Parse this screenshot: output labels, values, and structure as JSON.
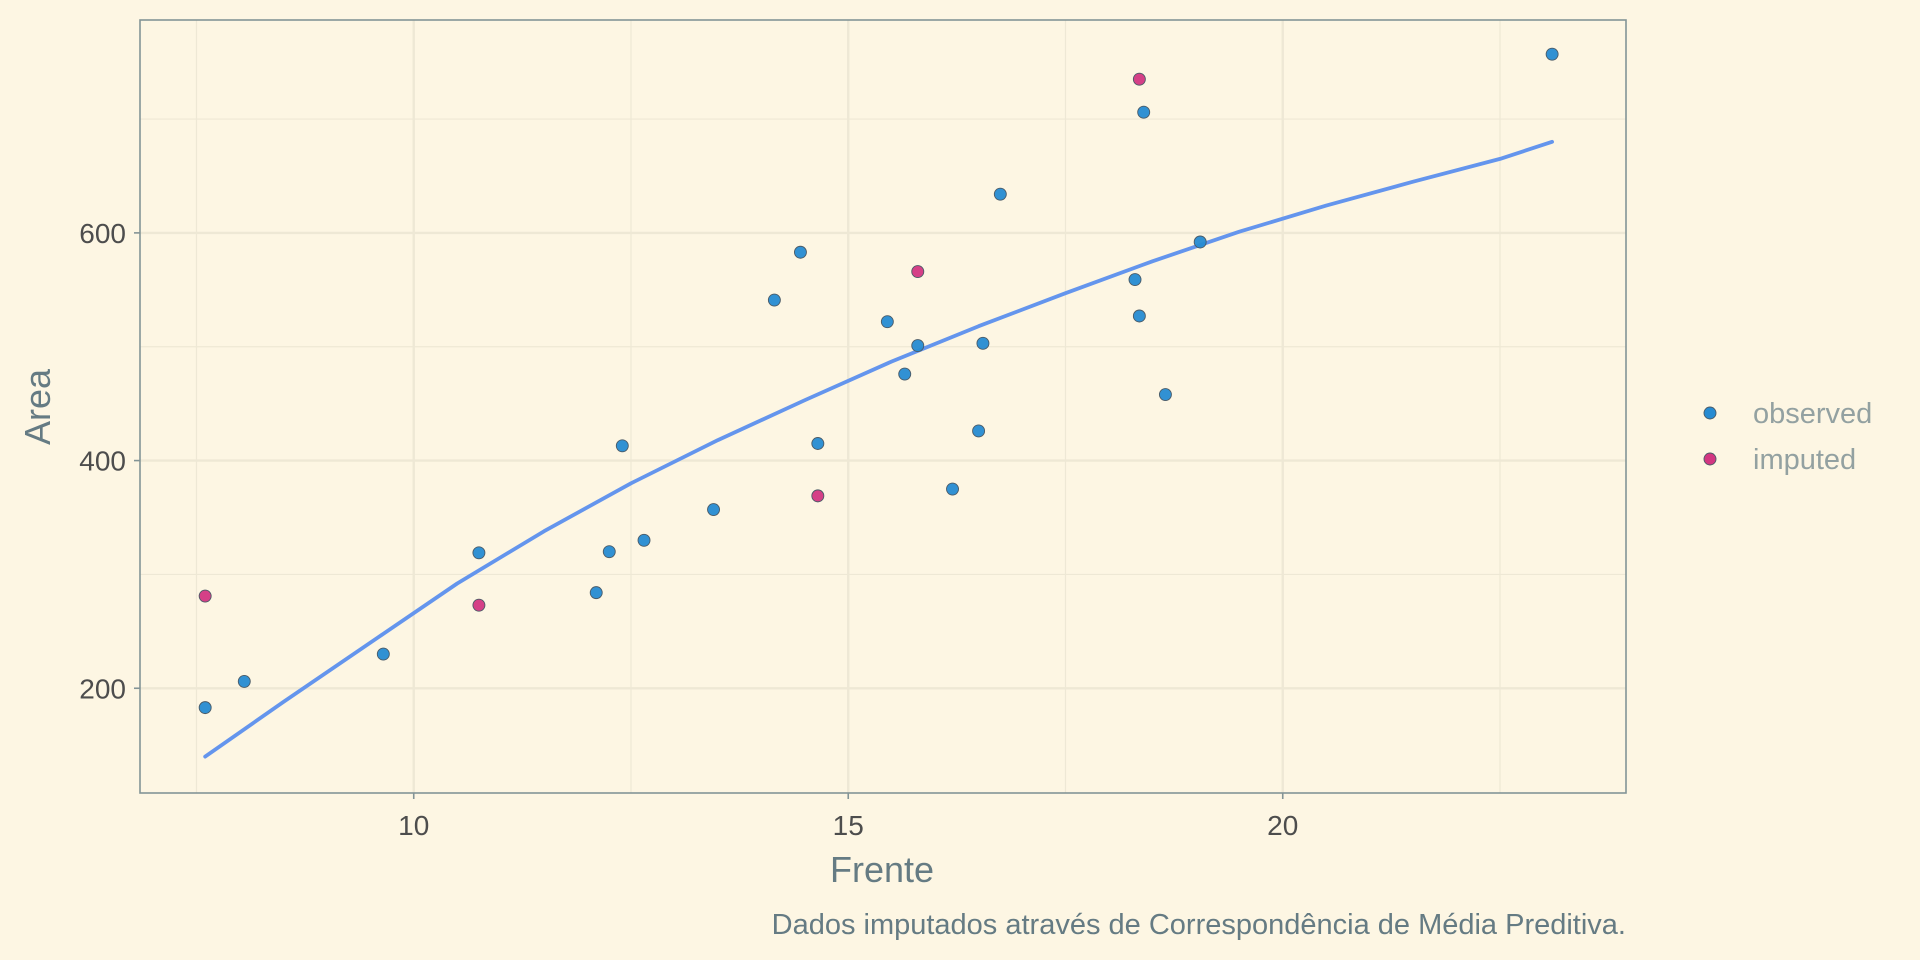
{
  "chart_data": {
    "type": "scatter",
    "xlabel": "Frente",
    "ylabel": "Area",
    "caption": "Dados imputados através de Correspondência de Média Preditiva.",
    "xlim": [
      6.85,
      23.95
    ],
    "ylim": [
      108,
      787
    ],
    "x_ticks": [
      10,
      15,
      20
    ],
    "x_tick_labels": [
      "10",
      "15",
      "20"
    ],
    "y_ticks": [
      200,
      400,
      600
    ],
    "y_tick_labels": [
      "200",
      "400",
      "600"
    ],
    "grid": true,
    "legend_position": "right",
    "colors": {
      "background": "#fdf6e3",
      "grid": "#eee8d5",
      "border": "#839496",
      "observed": "#268bd2",
      "imputed": "#d33682",
      "smooth": "#6495ed"
    },
    "series": [
      {
        "name": "observed",
        "color": "#268bd2",
        "points": [
          [
            7.6,
            183
          ],
          [
            8.05,
            206
          ],
          [
            9.65,
            230
          ],
          [
            10.75,
            319
          ],
          [
            12.1,
            284
          ],
          [
            12.25,
            320
          ],
          [
            12.4,
            413
          ],
          [
            12.65,
            330
          ],
          [
            13.45,
            357
          ],
          [
            14.15,
            541
          ],
          [
            14.45,
            583
          ],
          [
            14.65,
            415
          ],
          [
            15.45,
            522
          ],
          [
            15.65,
            476
          ],
          [
            15.8,
            501
          ],
          [
            16.2,
            375
          ],
          [
            16.5,
            426
          ],
          [
            16.55,
            503
          ],
          [
            16.75,
            634
          ],
          [
            18.3,
            559
          ],
          [
            18.35,
            527
          ],
          [
            18.4,
            706
          ],
          [
            18.65,
            458
          ],
          [
            19.05,
            592
          ],
          [
            23.1,
            757
          ]
        ]
      },
      {
        "name": "imputed",
        "color": "#d33682",
        "points": [
          [
            7.6,
            281
          ],
          [
            10.75,
            273
          ],
          [
            14.65,
            369
          ],
          [
            15.8,
            566
          ],
          [
            18.35,
            735
          ]
        ]
      }
    ],
    "smooth_line": {
      "color": "#6495ed",
      "points": [
        [
          7.6,
          140
        ],
        [
          8.5,
          188
        ],
        [
          9.5,
          240
        ],
        [
          10.5,
          292
        ],
        [
          11.5,
          338
        ],
        [
          12.5,
          380
        ],
        [
          13.5,
          418
        ],
        [
          14.5,
          453
        ],
        [
          15.5,
          487
        ],
        [
          16.5,
          518
        ],
        [
          17.5,
          547
        ],
        [
          18.5,
          575
        ],
        [
          19.5,
          601
        ],
        [
          20.5,
          624
        ],
        [
          21.5,
          645
        ],
        [
          22.5,
          665
        ],
        [
          23.1,
          680
        ]
      ]
    }
  }
}
